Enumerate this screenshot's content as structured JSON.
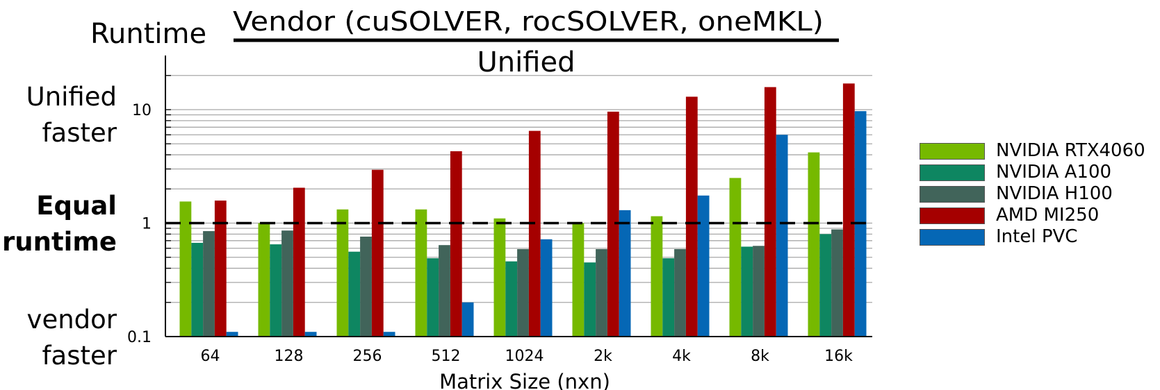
{
  "chart_data": {
    "type": "bar",
    "ylabel_prefix": "Runtime",
    "ylabel_numerator": "Vendor (cuSOLVER, rocSOLVER, oneMKL)",
    "ylabel_denominator": "Unified",
    "xlabel": "Matrix Size (nxn)",
    "yscale": "log",
    "ylim": [
      0.1,
      30
    ],
    "yticks": [
      "0.1",
      "1",
      "10"
    ],
    "grid": true,
    "reference_line": 1,
    "annotations": {
      "top": [
        "Unified",
        "faster"
      ],
      "middle": [
        "Equal",
        "runtime"
      ],
      "bottom": [
        "vendor",
        "faster"
      ]
    },
    "categories": [
      "64",
      "128",
      "256",
      "512",
      "1024",
      "2k",
      "4k",
      "8k",
      "16k"
    ],
    "series": [
      {
        "name": "NVIDIA RTX4060",
        "color": "#76b900",
        "values": [
          1.55,
          1.0,
          1.32,
          1.32,
          1.1,
          1.0,
          1.15,
          2.5,
          4.2
        ]
      },
      {
        "name": "NVIDIA A100",
        "color": "#0e8661",
        "values": [
          0.67,
          0.65,
          0.56,
          0.49,
          0.46,
          0.45,
          0.49,
          0.62,
          0.8
        ]
      },
      {
        "name": "NVIDIA H100",
        "color": "#41645a",
        "values": [
          0.85,
          0.86,
          0.76,
          0.64,
          0.59,
          0.59,
          0.59,
          0.63,
          0.88
        ]
      },
      {
        "name": "AMD MI250",
        "color": "#a50000",
        "values": [
          1.58,
          2.05,
          2.95,
          4.3,
          6.5,
          9.6,
          13.0,
          15.8,
          17.0
        ]
      },
      {
        "name": "Intel PVC",
        "color": "#0567b5",
        "values": [
          0.11,
          0.11,
          0.11,
          0.2,
          0.72,
          1.3,
          1.75,
          6.0,
          9.7
        ]
      }
    ],
    "legend_position": "right"
  }
}
